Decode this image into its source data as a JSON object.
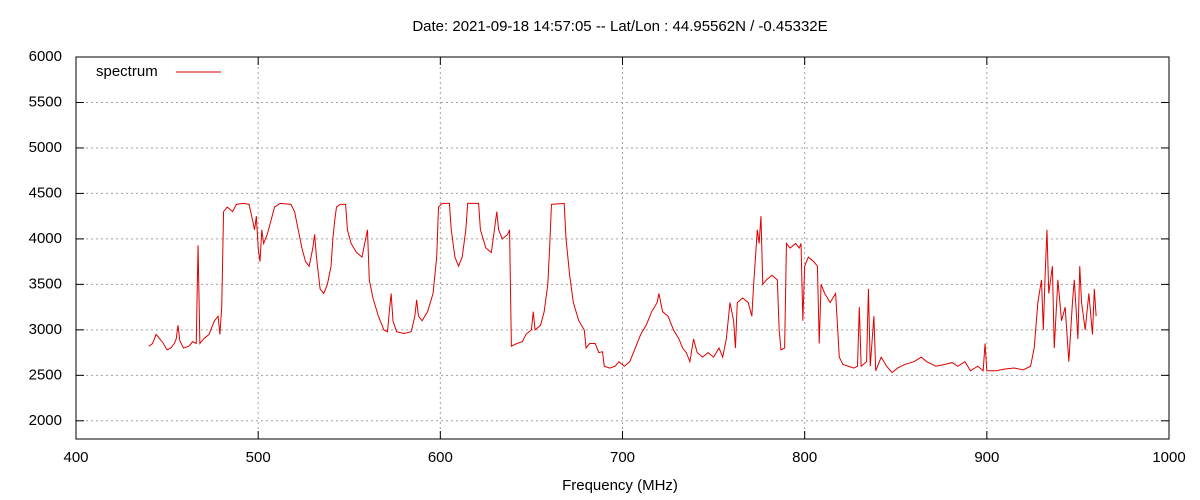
{
  "chart_data": {
    "type": "line",
    "title": "Date: 2021-09-18 14:57:05  --  Lat/Lon : 44.95562N / -0.45332E",
    "x_label": "Frequency (MHz)",
    "xlim": [
      400,
      1000
    ],
    "xticks": [
      400,
      500,
      600,
      700,
      800,
      900,
      1000
    ],
    "ylim": [
      1800,
      6000
    ],
    "yticks": [
      2000,
      2500,
      3000,
      3500,
      4000,
      4500,
      5000,
      5500,
      6000
    ],
    "grid": true,
    "legend": "top-left",
    "x": [
      440,
      442,
      444,
      446,
      448,
      450,
      452,
      454,
      455,
      456,
      457,
      459,
      462,
      464,
      466,
      467,
      468,
      470,
      473,
      476,
      478,
      479,
      480,
      481,
      483,
      486,
      488,
      492,
      495,
      497,
      498,
      499,
      500,
      501,
      502,
      503,
      505,
      507,
      509,
      512,
      518,
      520,
      522,
      524,
      526,
      528,
      530,
      531,
      532,
      534,
      536,
      538,
      540,
      541,
      542,
      543,
      545,
      548,
      549,
      551,
      554,
      557,
      559,
      560,
      561,
      563,
      566,
      569,
      571,
      572,
      573,
      574,
      576,
      580,
      584,
      586,
      587,
      588,
      590,
      593,
      596,
      598,
      599,
      601,
      605,
      606,
      608,
      610,
      612,
      614,
      615,
      621,
      622,
      625,
      628,
      630,
      631,
      632,
      634,
      637,
      638,
      639,
      642,
      645,
      647,
      650,
      651,
      652,
      655,
      657,
      659,
      660,
      661,
      668,
      669,
      671,
      673,
      676,
      679,
      680,
      682,
      685,
      687,
      689,
      690,
      693,
      696,
      698,
      701,
      704,
      707,
      710,
      713,
      716,
      719,
      720,
      722,
      725,
      728,
      731,
      733,
      735,
      737,
      739,
      741,
      744,
      747,
      750,
      753,
      755,
      757,
      759,
      761,
      762,
      763,
      766,
      769,
      771,
      772,
      773,
      774,
      775,
      776,
      777,
      779,
      782,
      785,
      786,
      787,
      789,
      790,
      792,
      795,
      797,
      798,
      799,
      800,
      802,
      805,
      807,
      808,
      809,
      811,
      814,
      817,
      819,
      821,
      824,
      827,
      829,
      830,
      831,
      834,
      835,
      836,
      838,
      839,
      842,
      845,
      848,
      851,
      855,
      860,
      864,
      867,
      872,
      877,
      881,
      884,
      888,
      891,
      895,
      898,
      899,
      900,
      905,
      910,
      915,
      920,
      924,
      926,
      928,
      930,
      931,
      932,
      933,
      934,
      936,
      937,
      939,
      941,
      943,
      945,
      947,
      948,
      950,
      951,
      952,
      954,
      956,
      958,
      959,
      960
    ],
    "series": [
      {
        "name": "spectrum",
        "color": "#e00000",
        "values": [
          2820,
          2850,
          2950,
          2900,
          2850,
          2780,
          2800,
          2850,
          2900,
          3050,
          2880,
          2800,
          2820,
          2870,
          2850,
          3930,
          2850,
          2900,
          2950,
          3100,
          3150,
          2950,
          3250,
          4300,
          4350,
          4300,
          4380,
          4390,
          4380,
          4200,
          4100,
          4250,
          3900,
          3750,
          4100,
          3950,
          4050,
          4200,
          4350,
          4390,
          4380,
          4300,
          4100,
          3900,
          3750,
          3700,
          3900,
          4050,
          3800,
          3450,
          3400,
          3500,
          3700,
          4000,
          4200,
          4350,
          4380,
          4380,
          4100,
          3950,
          3850,
          3800,
          4000,
          4100,
          3550,
          3350,
          3150,
          3000,
          2980,
          3200,
          3400,
          3100,
          2980,
          2960,
          2980,
          3150,
          3330,
          3150,
          3100,
          3200,
          3400,
          3800,
          4350,
          4390,
          4390,
          4100,
          3800,
          3700,
          3800,
          4100,
          4390,
          4390,
          4100,
          3900,
          3850,
          4150,
          4300,
          4100,
          4000,
          4050,
          4100,
          2820,
          2850,
          2870,
          2950,
          3000,
          3200,
          3000,
          3050,
          3200,
          3500,
          3900,
          4380,
          4390,
          4000,
          3600,
          3300,
          3100,
          3000,
          2800,
          2850,
          2850,
          2750,
          2760,
          2600,
          2580,
          2600,
          2650,
          2600,
          2650,
          2800,
          2950,
          3050,
          3200,
          3300,
          3400,
          3200,
          3150,
          3000,
          2900,
          2800,
          2750,
          2650,
          2900,
          2750,
          2700,
          2750,
          2700,
          2800,
          2700,
          2900,
          3300,
          3100,
          2800,
          3300,
          3350,
          3300,
          3150,
          3500,
          3800,
          4100,
          3950,
          4250,
          3500,
          3550,
          3600,
          3550,
          3000,
          2780,
          2800,
          3950,
          3900,
          3950,
          3900,
          3950,
          3100,
          3700,
          3800,
          3750,
          3700,
          2850,
          3500,
          3400,
          3300,
          3400,
          2700,
          2620,
          2600,
          2580,
          2600,
          3250,
          2600,
          2650,
          3450,
          2600,
          3150,
          2550,
          2700,
          2600,
          2530,
          2580,
          2620,
          2650,
          2700,
          2650,
          2600,
          2620,
          2640,
          2600,
          2650,
          2550,
          2600,
          2550,
          2850,
          2550,
          2550,
          2570,
          2580,
          2560,
          2600,
          2800,
          3300,
          3550,
          3000,
          3600,
          4100,
          3400,
          3700,
          2800,
          3550,
          3100,
          3250,
          2650,
          3300,
          3550,
          2900,
          3700,
          3300,
          3000,
          3400,
          2950,
          3450,
          3150
        ]
      }
    ]
  }
}
